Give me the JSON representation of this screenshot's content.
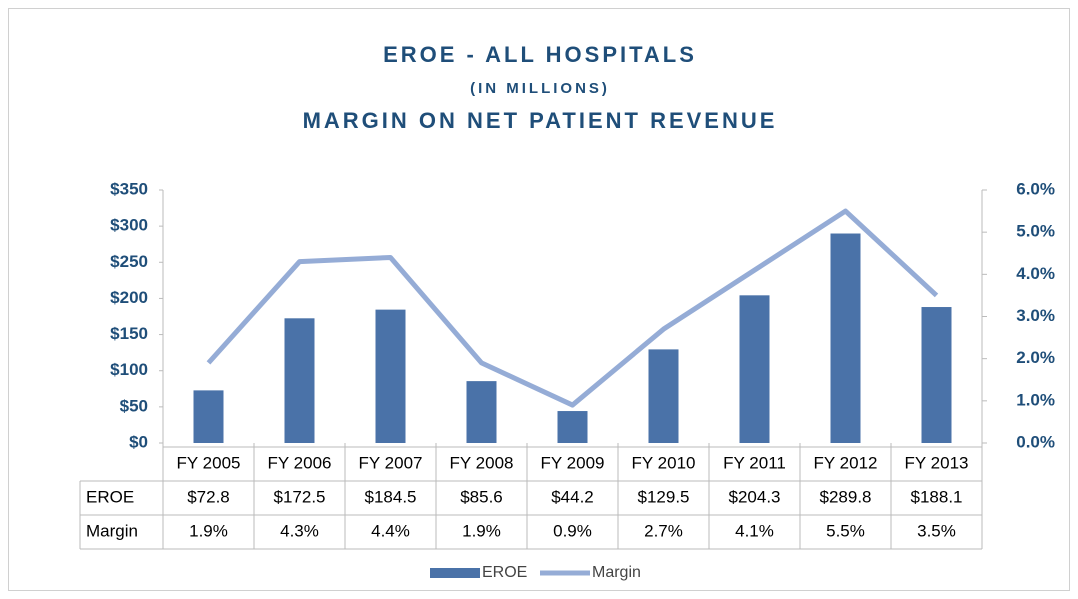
{
  "chart_data": {
    "type": "bar-line",
    "title": [
      "EROE - ALL HOSPITALS",
      "(IN MILLIONS)",
      "MARGIN ON NET PATIENT REVENUE"
    ],
    "categories": [
      "FY 2005",
      "FY 2006",
      "FY 2007",
      "FY 2008",
      "FY 2009",
      "FY 2010",
      "FY 2011",
      "FY 2012",
      "FY 2013"
    ],
    "series": [
      {
        "name": "EROE",
        "type": "bar",
        "color": "#4a72a8",
        "values": [
          72.8,
          172.5,
          184.5,
          85.6,
          44.2,
          129.5,
          204.3,
          289.8,
          188.1
        ],
        "value_labels": [
          "$72.8",
          "$172.5",
          "$184.5",
          "$85.6",
          "$44.2",
          "$129.5",
          "$204.3",
          "$289.8",
          "$188.1"
        ]
      },
      {
        "name": "Margin",
        "type": "line",
        "axis": "y2",
        "color": "#95acd6",
        "values": [
          1.9,
          4.3,
          4.4,
          1.9,
          0.9,
          2.7,
          4.1,
          5.5,
          3.5
        ],
        "value_labels": [
          "1.9%",
          "4.3%",
          "4.4%",
          "1.9%",
          "0.9%",
          "2.7%",
          "4.1%",
          "5.5%",
          "3.5%"
        ]
      }
    ],
    "ylim": [
      0,
      350
    ],
    "yticks": [
      {
        "value": 0,
        "label": "$0"
      },
      {
        "value": 50,
        "label": "$50"
      },
      {
        "value": 100,
        "label": "$100"
      },
      {
        "value": 150,
        "label": "$150"
      },
      {
        "value": 200,
        "label": "$200"
      },
      {
        "value": 250,
        "label": "$250"
      },
      {
        "value": 300,
        "label": "$300"
      },
      {
        "value": 350,
        "label": "$350"
      }
    ],
    "y2lim": [
      0,
      6
    ],
    "y2ticks": [
      {
        "value": 0,
        "label": "0.0%"
      },
      {
        "value": 1,
        "label": "1.0%"
      },
      {
        "value": 2,
        "label": "2.0%"
      },
      {
        "value": 3,
        "label": "3.0%"
      },
      {
        "value": 4,
        "label": "4.0%"
      },
      {
        "value": 5,
        "label": "5.0%"
      },
      {
        "value": 6,
        "label": "6.0%"
      }
    ],
    "legend": "bottom"
  }
}
